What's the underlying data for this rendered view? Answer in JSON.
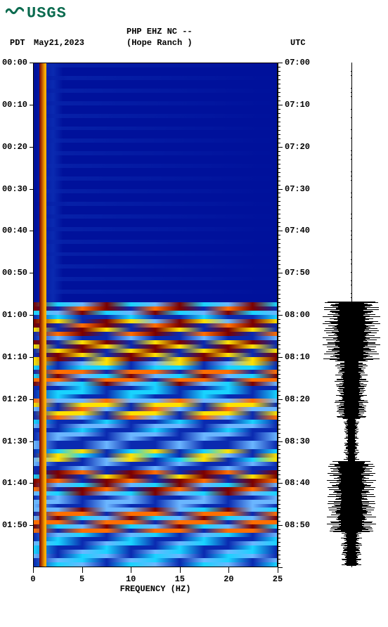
{
  "logo_text": "USGS",
  "header": {
    "channel": "PHP EHZ NC --",
    "station": "(Hope Ranch )",
    "tz_left": "PDT",
    "date": "May21,2023",
    "tz_right": "UTC"
  },
  "axes": {
    "x": {
      "label": "FREQUENCY (HZ)",
      "ticks": [
        0,
        5,
        10,
        15,
        20,
        25
      ],
      "min": 0,
      "max": 25
    },
    "y": {
      "left_labels": [
        "00:00",
        "00:10",
        "00:20",
        "00:30",
        "00:40",
        "00:50",
        "01:00",
        "01:10",
        "01:20",
        "01:30",
        "01:40",
        "01:50"
      ],
      "right_labels": [
        "07:00",
        "07:10",
        "07:20",
        "07:30",
        "07:40",
        "07:50",
        "08:00",
        "08:10",
        "08:20",
        "08:30",
        "08:40",
        "08:50"
      ],
      "n_major": 12,
      "span_minutes": 120,
      "minor_per_major": 10
    }
  },
  "colors": {
    "bg_quiet": "#00119b",
    "bg_quiet2": "#0a2ab0",
    "active_red": "#7b0000",
    "active_orange": "#ff6e00",
    "active_yellow": "#ffe100",
    "active_cyan": "#19d3ff",
    "active_ltblue": "#6bb6ff",
    "vgrid": "rgba(200,200,220,0.15)"
  },
  "spectrogram": {
    "n_rows": 120,
    "quiet_range": [
      0,
      57
    ],
    "active_bands": [
      {
        "from": 57,
        "to": 60,
        "intensity": 0.9
      },
      {
        "from": 60,
        "to": 61,
        "intensity": 0.3
      },
      {
        "from": 61,
        "to": 65,
        "intensity": 0.95
      },
      {
        "from": 65,
        "to": 66,
        "intensity": 0.2
      },
      {
        "from": 66,
        "to": 71,
        "intensity": 0.85
      },
      {
        "from": 71,
        "to": 73,
        "intensity": 0.4
      },
      {
        "from": 73,
        "to": 77,
        "intensity": 0.8
      },
      {
        "from": 77,
        "to": 80,
        "intensity": 0.35
      },
      {
        "from": 80,
        "to": 85,
        "intensity": 0.55
      },
      {
        "from": 85,
        "to": 89,
        "intensity": 0.25
      },
      {
        "from": 89,
        "to": 92,
        "intensity": 0.15
      },
      {
        "from": 92,
        "to": 95,
        "intensity": 0.45
      },
      {
        "from": 95,
        "to": 97,
        "intensity": 0.2
      },
      {
        "from": 97,
        "to": 103,
        "intensity": 0.9
      },
      {
        "from": 103,
        "to": 106,
        "intensity": 0.2
      },
      {
        "from": 106,
        "to": 112,
        "intensity": 0.85
      },
      {
        "from": 112,
        "to": 120,
        "intensity": 0.3
      }
    ]
  },
  "seismogram": {
    "baseline_amp": 0.02,
    "bursts": [
      {
        "from": 57,
        "to": 71,
        "amp": 0.95
      },
      {
        "from": 71,
        "to": 85,
        "amp": 0.55
      },
      {
        "from": 85,
        "to": 95,
        "amp": 0.25
      },
      {
        "from": 95,
        "to": 112,
        "amp": 0.8
      },
      {
        "from": 112,
        "to": 120,
        "amp": 0.35
      }
    ]
  }
}
